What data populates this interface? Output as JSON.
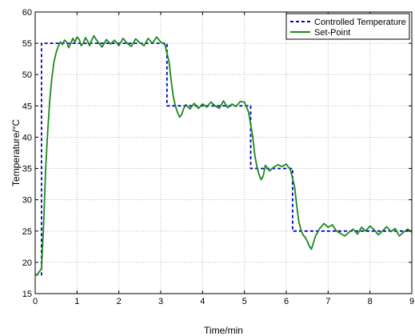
{
  "chart_data": {
    "type": "line",
    "xlabel": "Time/min",
    "ylabel": "Temperature/°C",
    "xlim": [
      0,
      9
    ],
    "ylim": [
      15,
      60
    ],
    "x_ticks": [
      0,
      1,
      2,
      3,
      4,
      5,
      6,
      7,
      8,
      9
    ],
    "y_ticks": [
      15,
      20,
      25,
      30,
      35,
      40,
      45,
      50,
      55,
      60
    ],
    "grid": true,
    "legend_position": "top-right",
    "series": [
      {
        "name": "Controlled Temperature",
        "color": "#0000cc",
        "line_style": "dashed",
        "x": [
          0,
          0.15,
          0.15,
          3.15,
          3.15,
          5.15,
          5.15,
          6.15,
          6.15,
          9
        ],
        "y": [
          18,
          18,
          55,
          55,
          45,
          45,
          35,
          35,
          25,
          25
        ]
      },
      {
        "name": "Set-Point",
        "color": "#1a8a1a",
        "line_style": "solid",
        "x": [
          0,
          0.05,
          0.1,
          0.15,
          0.2,
          0.25,
          0.3,
          0.35,
          0.4,
          0.45,
          0.5,
          0.55,
          0.6,
          0.65,
          0.7,
          0.75,
          0.8,
          0.85,
          0.9,
          0.95,
          1.0,
          1.05,
          1.1,
          1.15,
          1.2,
          1.25,
          1.3,
          1.35,
          1.4,
          1.5,
          1.6,
          1.7,
          1.8,
          1.9,
          2.0,
          2.1,
          2.2,
          2.3,
          2.4,
          2.5,
          2.6,
          2.7,
          2.8,
          2.9,
          3.0,
          3.1,
          3.2,
          3.25,
          3.3,
          3.35,
          3.4,
          3.45,
          3.5,
          3.55,
          3.6,
          3.7,
          3.8,
          3.9,
          4.0,
          4.1,
          4.2,
          4.3,
          4.4,
          4.5,
          4.6,
          4.7,
          4.8,
          4.9,
          5.0,
          5.1,
          5.2,
          5.25,
          5.3,
          5.35,
          5.4,
          5.45,
          5.5,
          5.6,
          5.7,
          5.8,
          5.9,
          6.0,
          6.1,
          6.2,
          6.25,
          6.3,
          6.35,
          6.4,
          6.45,
          6.5,
          6.55,
          6.6,
          6.7,
          6.8,
          6.9,
          7.0,
          7.1,
          7.2,
          7.3,
          7.4,
          7.5,
          7.6,
          7.7,
          7.8,
          7.9,
          8.0,
          8.1,
          8.2,
          8.3,
          8.4,
          8.5,
          8.6,
          8.7,
          8.8,
          8.9,
          9.0
        ],
        "y": [
          18,
          18,
          18.5,
          19,
          26,
          35,
          41,
          46,
          49.5,
          52,
          53.5,
          54.5,
          55.2,
          54.8,
          55.5,
          55.2,
          54.3,
          55,
          55.8,
          55.2,
          56,
          55.6,
          54.6,
          55,
          55.9,
          55.4,
          54.6,
          55.5,
          56.2,
          55.2,
          54.4,
          55.6,
          54.9,
          55.5,
          54.6,
          55.8,
          55.0,
          54.5,
          55.7,
          55.1,
          54.6,
          55.8,
          55.0,
          56.0,
          55.2,
          54.8,
          52,
          49,
          46.5,
          45,
          44,
          43.2,
          43.6,
          44.6,
          45.2,
          44.5,
          45.4,
          44.6,
          45.3,
          44.8,
          45.6,
          45.0,
          44.6,
          45.8,
          44.7,
          45.3,
          44.9,
          45.7,
          45.6,
          44,
          40,
          37,
          35.2,
          34,
          33.2,
          33.8,
          35.5,
          34.6,
          35.2,
          35.6,
          35.3,
          35.7,
          34.8,
          32,
          29,
          26.5,
          25.2,
          24.4,
          24.0,
          23.4,
          22.6,
          22.1,
          24.2,
          25.4,
          26.2,
          25.6,
          26.0,
          25.0,
          24.6,
          24.2,
          24.8,
          25.3,
          24.5,
          25.6,
          25.0,
          25.8,
          25.2,
          24.4,
          25.0,
          25.7,
          24.9,
          25.4,
          24.2,
          24.8,
          25.3,
          24.8
        ]
      }
    ]
  }
}
